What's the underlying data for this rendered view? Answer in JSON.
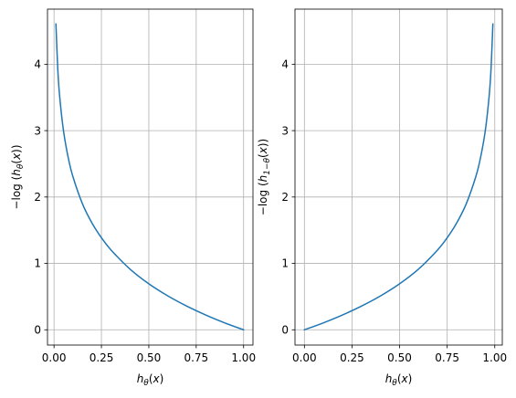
{
  "chart_data": [
    {
      "type": "line",
      "xlabel": "hθ(x)",
      "ylabel": "−log (hθ(x))",
      "xlim": [
        -0.0345,
        1.0495
      ],
      "ylim": [
        -0.23,
        4.83
      ],
      "xticks": [
        "0.00",
        "0.25",
        "0.50",
        "0.75",
        "1.00"
      ],
      "xtick_values": [
        0.0,
        0.25,
        0.5,
        0.75,
        1.0
      ],
      "yticks": [
        "0",
        "1",
        "2",
        "3",
        "4"
      ],
      "ytick_values": [
        0,
        1,
        2,
        3,
        4
      ],
      "grid": true,
      "series": [
        {
          "color": "#1f77b4",
          "x": [
            0.01,
            0.02,
            0.03,
            0.05,
            0.075,
            0.1,
            0.15,
            0.2,
            0.25,
            0.3,
            0.4,
            0.5,
            0.6,
            0.7,
            0.8,
            0.9,
            1.0
          ],
          "y": [
            4.605,
            3.912,
            3.507,
            2.996,
            2.59,
            2.303,
            1.897,
            1.609,
            1.386,
            1.204,
            0.916,
            0.693,
            0.511,
            0.357,
            0.223,
            0.105,
            0.0
          ]
        }
      ]
    },
    {
      "type": "line",
      "xlabel": "hθ(x)",
      "ylabel": "−log (h1−θ(x))",
      "xlim": [
        -0.0495,
        1.0395
      ],
      "ylim": [
        -0.23,
        4.83
      ],
      "xticks": [
        "0.00",
        "0.25",
        "0.50",
        "0.75",
        "1.00"
      ],
      "xtick_values": [
        0.0,
        0.25,
        0.5,
        0.75,
        1.0
      ],
      "yticks": [
        "0",
        "1",
        "2",
        "3",
        "4"
      ],
      "ytick_values": [
        0,
        1,
        2,
        3,
        4
      ],
      "grid": true,
      "series": [
        {
          "color": "#1f77b4",
          "x": [
            0.0,
            0.1,
            0.2,
            0.3,
            0.4,
            0.5,
            0.6,
            0.7,
            0.75,
            0.8,
            0.85,
            0.9,
            0.925,
            0.95,
            0.97,
            0.98,
            0.99
          ],
          "y": [
            0.0,
            0.105,
            0.223,
            0.357,
            0.511,
            0.693,
            0.916,
            1.204,
            1.386,
            1.609,
            1.897,
            2.303,
            2.59,
            2.996,
            3.507,
            3.912,
            4.605
          ]
        }
      ]
    }
  ]
}
